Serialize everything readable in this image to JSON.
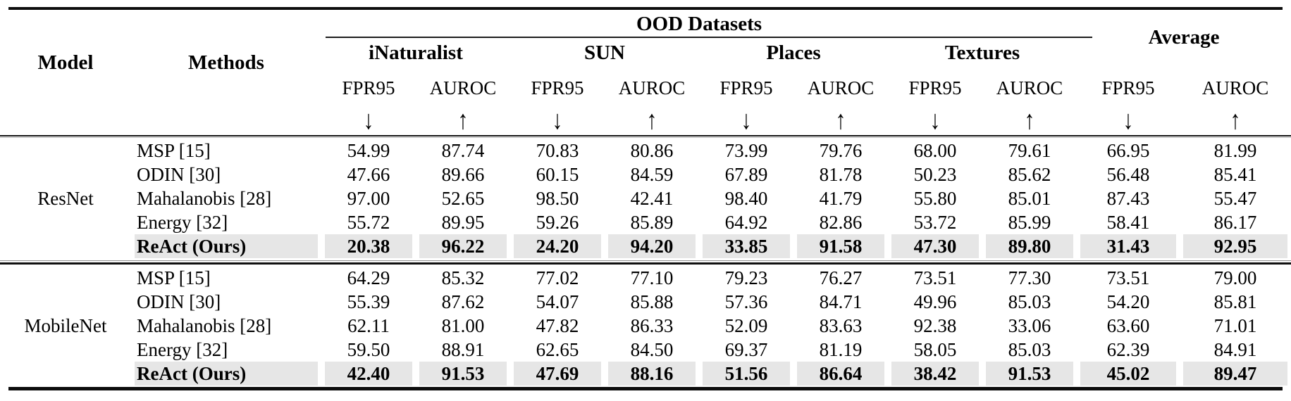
{
  "colors": {
    "background": "#ffffff",
    "highlight_row": "#e6e6e6",
    "rule": "#0d0d0d",
    "text": "#000000"
  },
  "table": {
    "header": {
      "model": "Model",
      "methods": "Methods",
      "ood_group": "OOD Datasets",
      "average": "Average",
      "datasets": [
        "iNaturalist",
        "SUN",
        "Places",
        "Textures"
      ],
      "metrics": {
        "fpr": "FPR95",
        "auroc": "AUROC",
        "down_arrow": "↓",
        "up_arrow": "↑"
      }
    },
    "blocks": [
      {
        "model": "ResNet",
        "rows": [
          {
            "method": "MSP [15]",
            "highlight": false,
            "values": [
              "54.99",
              "87.74",
              "70.83",
              "80.86",
              "73.99",
              "79.76",
              "68.00",
              "79.61",
              "66.95",
              "81.99"
            ]
          },
          {
            "method": "ODIN [30]",
            "highlight": false,
            "values": [
              "47.66",
              "89.66",
              "60.15",
              "84.59",
              "67.89",
              "81.78",
              "50.23",
              "85.62",
              "56.48",
              "85.41"
            ]
          },
          {
            "method": "Mahalanobis [28]",
            "highlight": false,
            "values": [
              "97.00",
              "52.65",
              "98.50",
              "42.41",
              "98.40",
              "41.79",
              "55.80",
              "85.01",
              "87.43",
              "55.47"
            ]
          },
          {
            "method": "Energy [32]",
            "highlight": false,
            "values": [
              "55.72",
              "89.95",
              "59.26",
              "85.89",
              "64.92",
              "82.86",
              "53.72",
              "85.99",
              "58.41",
              "86.17"
            ]
          },
          {
            "method": "ReAct (Ours)",
            "highlight": true,
            "values": [
              "20.38",
              "96.22",
              "24.20",
              "94.20",
              "33.85",
              "91.58",
              "47.30",
              "89.80",
              "31.43",
              "92.95"
            ]
          }
        ]
      },
      {
        "model": "MobileNet",
        "rows": [
          {
            "method": "MSP [15]",
            "highlight": false,
            "values": [
              "64.29",
              "85.32",
              "77.02",
              "77.10",
              "79.23",
              "76.27",
              "73.51",
              "77.30",
              "73.51",
              "79.00"
            ]
          },
          {
            "method": "ODIN [30]",
            "highlight": false,
            "values": [
              "55.39",
              "87.62",
              "54.07",
              "85.88",
              "57.36",
              "84.71",
              "49.96",
              "85.03",
              "54.20",
              "85.81"
            ]
          },
          {
            "method": "Mahalanobis [28]",
            "highlight": false,
            "values": [
              "62.11",
              "81.00",
              "47.82",
              "86.33",
              "52.09",
              "83.63",
              "92.38",
              "33.06",
              "63.60",
              "71.01"
            ]
          },
          {
            "method": "Energy [32]",
            "highlight": false,
            "values": [
              "59.50",
              "88.91",
              "62.65",
              "84.50",
              "69.37",
              "81.19",
              "58.05",
              "85.03",
              "62.39",
              "84.91"
            ]
          },
          {
            "method": "ReAct (Ours)",
            "highlight": true,
            "values": [
              "42.40",
              "91.53",
              "47.69",
              "88.16",
              "51.56",
              "86.64",
              "38.42",
              "91.53",
              "45.02",
              "89.47"
            ]
          }
        ]
      }
    ]
  }
}
